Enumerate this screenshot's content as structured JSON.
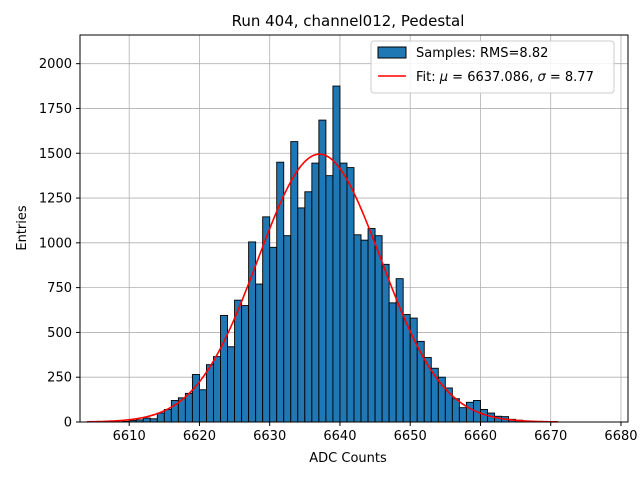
{
  "chart_data": {
    "type": "bar",
    "title": "Run 404, channel012, Pedestal",
    "xlabel": "ADC Counts",
    "ylabel": "Entries",
    "xlim": [
      6603,
      6681
    ],
    "ylim": [
      0,
      2160
    ],
    "x_ticks": [
      6610,
      6620,
      6630,
      6640,
      6650,
      6660,
      6670,
      6680
    ],
    "y_ticks": [
      0,
      250,
      500,
      750,
      1000,
      1250,
      1500,
      1750,
      2000
    ],
    "grid": true,
    "legend_position": "top-right",
    "histogram": {
      "name": "Samples: RMS=8.82",
      "color": "#1f77b4",
      "edge_color": "#000000",
      "bin_start": 6609,
      "bin_width": 1,
      "counts": [
        3,
        8,
        12,
        22,
        18,
        50,
        70,
        120,
        135,
        160,
        265,
        180,
        320,
        365,
        595,
        420,
        680,
        650,
        1005,
        770,
        1145,
        975,
        1450,
        1040,
        1565,
        1195,
        1285,
        1445,
        1685,
        1375,
        1875,
        1445,
        1420,
        1045,
        1015,
        1080,
        1040,
        880,
        665,
        800,
        600,
        580,
        450,
        360,
        300,
        250,
        190,
        130,
        80,
        110,
        120,
        70,
        50,
        32,
        30,
        15,
        10,
        6,
        3,
        2,
        1,
        1
      ]
    },
    "fit": {
      "name": "Fit: μ = 6637.086, σ = 8.77",
      "color": "#ff0000",
      "mu": 6637.086,
      "sigma": 8.77,
      "amplitude": 1495,
      "x_range": [
        6604,
        6671
      ]
    }
  },
  "legend": {
    "histogram_label": "Samples: RMS=8.82",
    "fit_label_prefix": "Fit: ",
    "fit_label_mu": "μ",
    "fit_label_mid": " = 6637.086, ",
    "fit_label_sigma": "σ",
    "fit_label_suffix": " = 8.77"
  }
}
